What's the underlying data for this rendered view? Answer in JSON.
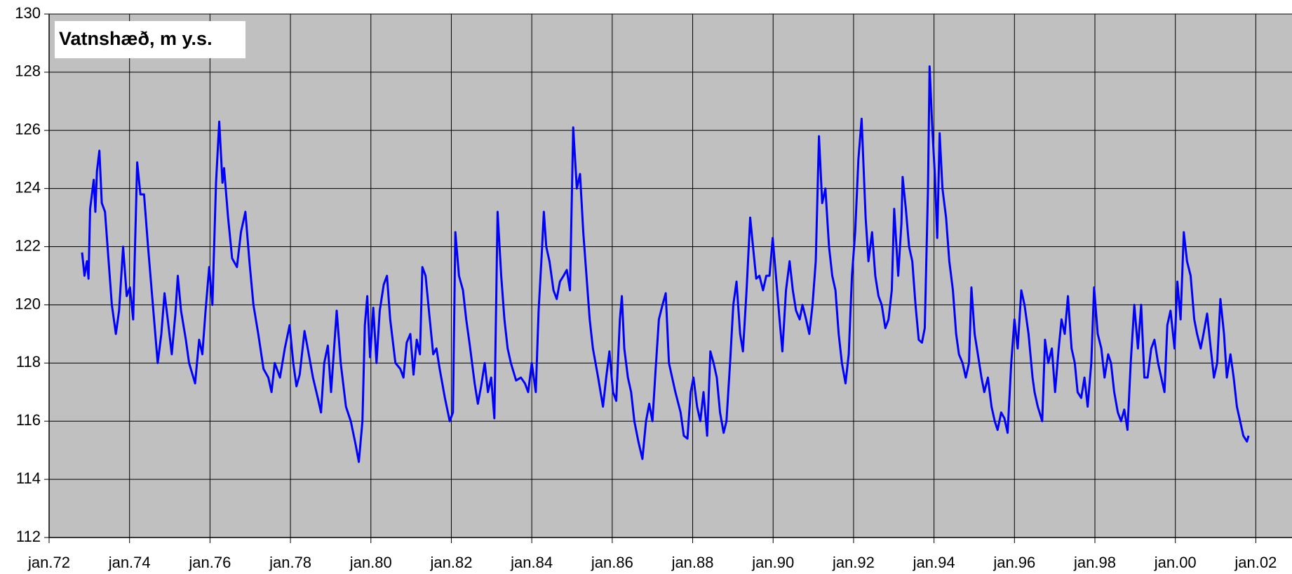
{
  "chart_data": {
    "type": "line",
    "title": "Vatnshæð, m y.s.",
    "color": "#0000ff",
    "background": "#c0c0c0",
    "grid": true,
    "xlim": [
      1972,
      2002.9
    ],
    "ylim": [
      112,
      130
    ],
    "yticks": [
      112,
      114,
      116,
      118,
      120,
      122,
      124,
      126,
      128,
      130
    ],
    "xticks": [
      {
        "value": 1972,
        "label": "jan.72"
      },
      {
        "value": 1974,
        "label": "jan.74"
      },
      {
        "value": 1976,
        "label": "jan.76"
      },
      {
        "value": 1978,
        "label": "jan.78"
      },
      {
        "value": 1980,
        "label": "jan.80"
      },
      {
        "value": 1982,
        "label": "jan.82"
      },
      {
        "value": 1984,
        "label": "jan.84"
      },
      {
        "value": 1986,
        "label": "jan.86"
      },
      {
        "value": 1988,
        "label": "jan.88"
      },
      {
        "value": 1990,
        "label": "jan.90"
      },
      {
        "value": 1992,
        "label": "jan.92"
      },
      {
        "value": 1994,
        "label": "jan.94"
      },
      {
        "value": 1996,
        "label": "jan.96"
      },
      {
        "value": 1998,
        "label": "jan.98"
      },
      {
        "value": 2000,
        "label": "jan.00"
      },
      {
        "value": 2002,
        "label": "jan.02"
      }
    ],
    "x": [
      1972.82,
      1972.88,
      1972.94,
      1972.98,
      1973.02,
      1973.11,
      1973.15,
      1973.19,
      1973.25,
      1973.31,
      1973.39,
      1973.48,
      1973.56,
      1973.66,
      1973.74,
      1973.84,
      1973.93,
      1974.01,
      1974.09,
      1974.19,
      1974.27,
      1974.36,
      1974.46,
      1974.58,
      1974.7,
      1974.79,
      1974.87,
      1974.95,
      1975.05,
      1975.14,
      1975.2,
      1975.28,
      1975.4,
      1975.48,
      1975.63,
      1975.73,
      1975.81,
      1975.89,
      1975.98,
      1976.06,
      1976.15,
      1976.23,
      1976.31,
      1976.35,
      1976.45,
      1976.55,
      1976.67,
      1976.77,
      1976.88,
      1976.98,
      1977.08,
      1977.2,
      1977.33,
      1977.45,
      1977.53,
      1977.61,
      1977.74,
      1977.86,
      1977.98,
      1978.07,
      1978.15,
      1978.23,
      1978.35,
      1978.43,
      1978.56,
      1978.68,
      1978.76,
      1978.84,
      1978.93,
      1979.01,
      1979.09,
      1979.15,
      1979.25,
      1979.38,
      1979.5,
      1979.62,
      1979.7,
      1979.79,
      1979.85,
      1979.91,
      1979.98,
      1980.06,
      1980.14,
      1980.22,
      1980.32,
      1980.4,
      1980.48,
      1980.61,
      1980.73,
      1980.81,
      1980.89,
      1980.98,
      1981.06,
      1981.14,
      1981.22,
      1981.28,
      1981.36,
      1981.45,
      1981.55,
      1981.63,
      1981.71,
      1981.84,
      1981.96,
      1982.04,
      1982.1,
      1982.19,
      1982.29,
      1982.37,
      1982.46,
      1982.58,
      1982.66,
      1982.74,
      1982.83,
      1982.91,
      1982.99,
      1983.07,
      1983.15,
      1983.24,
      1983.32,
      1983.4,
      1983.48,
      1983.61,
      1983.73,
      1983.83,
      1983.91,
      1984.0,
      1984.1,
      1984.17,
      1984.25,
      1984.3,
      1984.36,
      1984.44,
      1984.54,
      1984.62,
      1984.7,
      1984.79,
      1984.87,
      1984.95,
      1985.03,
      1985.12,
      1985.2,
      1985.28,
      1985.36,
      1985.44,
      1985.52,
      1985.65,
      1985.77,
      1985.85,
      1985.93,
      1986.02,
      1986.1,
      1986.19,
      1986.24,
      1986.3,
      1986.39,
      1986.47,
      1986.55,
      1986.65,
      1986.75,
      1986.84,
      1986.92,
      1987.0,
      1987.08,
      1987.16,
      1987.25,
      1987.33,
      1987.41,
      1987.49,
      1987.57,
      1987.7,
      1987.78,
      1987.87,
      1987.95,
      1988.02,
      1988.11,
      1988.19,
      1988.27,
      1988.36,
      1988.44,
      1988.52,
      1988.6,
      1988.68,
      1988.77,
      1988.84,
      1988.93,
      1989.01,
      1989.09,
      1989.18,
      1989.25,
      1989.34,
      1989.43,
      1989.5,
      1989.58,
      1989.66,
      1989.75,
      1989.83,
      1989.91,
      1989.99,
      1990.07,
      1990.16,
      1990.23,
      1990.32,
      1990.41,
      1990.49,
      1990.57,
      1990.66,
      1990.73,
      1990.82,
      1990.9,
      1990.98,
      1991.06,
      1991.14,
      1991.22,
      1991.3,
      1991.39,
      1991.47,
      1991.55,
      1991.63,
      1991.71,
      1991.8,
      1991.88,
      1991.96,
      1992.04,
      1992.12,
      1992.2,
      1992.3,
      1992.37,
      1992.46,
      1992.54,
      1992.62,
      1992.7,
      1992.79,
      1992.87,
      1992.95,
      1993.01,
      1993.11,
      1993.19,
      1993.22,
      1993.3,
      1993.38,
      1993.46,
      1993.54,
      1993.62,
      1993.7,
      1993.77,
      1993.85,
      1993.89,
      1993.96,
      1994.02,
      1994.08,
      1994.14,
      1994.21,
      1994.3,
      1994.38,
      1994.47,
      1994.55,
      1994.62,
      1994.71,
      1994.79,
      1994.87,
      1994.93,
      1995.01,
      1995.09,
      1995.18,
      1995.25,
      1995.34,
      1995.43,
      1995.51,
      1995.58,
      1995.67,
      1995.75,
      1995.83,
      1995.92,
      1996.0,
      1996.08,
      1996.17,
      1996.25,
      1996.35,
      1996.45,
      1996.5,
      1996.58,
      1996.69,
      1996.76,
      1996.84,
      1996.93,
      1997.01,
      1997.1,
      1997.17,
      1997.25,
      1997.33,
      1997.42,
      1997.5,
      1997.57,
      1997.66,
      1997.74,
      1997.82,
      1997.91,
      1997.98,
      1998.07,
      1998.16,
      1998.24,
      1998.33,
      1998.4,
      1998.48,
      1998.57,
      1998.65,
      1998.73,
      1998.81,
      1998.89,
      1998.98,
      1999.07,
      1999.15,
      1999.23,
      1999.31,
      1999.4,
      1999.48,
      1999.57,
      1999.65,
      1999.73,
      1999.8,
      1999.88,
      1999.98,
      2000.05,
      2000.13,
      2000.21,
      2000.29,
      2000.38,
      2000.47,
      2000.54,
      2000.63,
      2000.7,
      2000.79,
      2000.88,
      2000.96,
      2001.04,
      2001.12,
      2001.21,
      2001.28,
      2001.37,
      2001.45,
      2001.53,
      2001.61,
      2001.69,
      2001.78,
      2001.82
    ],
    "values": [
      121.8,
      121.0,
      121.5,
      120.9,
      123.3,
      124.3,
      123.2,
      124.6,
      125.3,
      123.5,
      123.2,
      121.5,
      120.0,
      119.0,
      119.8,
      122.0,
      120.3,
      120.6,
      119.5,
      124.9,
      123.8,
      123.8,
      122.0,
      120.0,
      118.0,
      119.0,
      120.4,
      119.5,
      118.3,
      119.7,
      121.0,
      119.8,
      118.8,
      118.0,
      117.3,
      118.8,
      118.3,
      119.8,
      121.3,
      120.0,
      124.2,
      126.3,
      124.2,
      124.7,
      123.0,
      121.6,
      121.3,
      122.5,
      123.2,
      121.5,
      120.0,
      119.0,
      117.8,
      117.5,
      117.0,
      118.0,
      117.5,
      118.5,
      119.3,
      118.0,
      117.2,
      117.6,
      119.1,
      118.5,
      117.5,
      116.8,
      116.3,
      118.0,
      118.6,
      117.0,
      118.6,
      119.8,
      118.0,
      116.5,
      116.0,
      115.2,
      114.6,
      116.0,
      119.3,
      120.3,
      118.2,
      119.9,
      118.0,
      119.8,
      120.7,
      121.0,
      119.5,
      118.0,
      117.8,
      117.5,
      118.7,
      119.0,
      117.6,
      118.8,
      118.3,
      121.3,
      121.0,
      119.7,
      118.3,
      118.5,
      117.8,
      116.8,
      116.0,
      116.3,
      122.5,
      121.0,
      120.5,
      119.5,
      118.6,
      117.3,
      116.6,
      117.2,
      118.0,
      117.0,
      117.5,
      116.1,
      123.2,
      121.0,
      119.5,
      118.5,
      118.0,
      117.4,
      117.5,
      117.3,
      117.0,
      118.0,
      117.0,
      119.8,
      121.8,
      123.2,
      122.0,
      121.5,
      120.5,
      120.2,
      120.8,
      121.0,
      121.2,
      120.5,
      126.1,
      124.0,
      124.5,
      122.5,
      121.0,
      119.5,
      118.5,
      117.5,
      116.5,
      117.5,
      118.4,
      117.0,
      116.7,
      119.5,
      120.3,
      118.5,
      117.5,
      117.0,
      116.0,
      115.3,
      114.7,
      116.0,
      116.6,
      116.0,
      117.8,
      119.5,
      120.0,
      120.4,
      118.0,
      117.5,
      117.0,
      116.3,
      115.5,
      115.4,
      117.0,
      117.5,
      116.5,
      116.0,
      117.0,
      115.5,
      118.4,
      118.0,
      117.5,
      116.3,
      115.6,
      116.0,
      118.0,
      120.0,
      120.8,
      119.0,
      118.4,
      120.5,
      123.0,
      122.0,
      120.9,
      121.0,
      120.5,
      121.0,
      121.0,
      122.3,
      121.0,
      119.5,
      118.4,
      120.5,
      121.5,
      120.5,
      119.8,
      119.5,
      120.0,
      119.5,
      119.0,
      120.0,
      121.5,
      125.8,
      123.5,
      124.0,
      122.0,
      121.0,
      120.5,
      119.0,
      118.0,
      117.3,
      118.3,
      121.0,
      122.5,
      125.0,
      126.4,
      123.0,
      121.5,
      122.5,
      121.0,
      120.3,
      120.0,
      119.2,
      119.5,
      120.5,
      123.3,
      121.0,
      122.8,
      124.4,
      123.3,
      122.0,
      121.5,
      120.0,
      118.8,
      118.7,
      119.2,
      124.0,
      128.2,
      126.0,
      124.5,
      122.3,
      125.9,
      124.0,
      123.0,
      121.5,
      120.5,
      119.0,
      118.3,
      118.0,
      117.5,
      118.0,
      120.6,
      119.0,
      118.3,
      117.5,
      117.0,
      117.5,
      116.5,
      116.0,
      115.7,
      116.3,
      116.1,
      115.6,
      118.0,
      119.5,
      118.5,
      120.5,
      120.0,
      119.0,
      117.5,
      117.0,
      116.5,
      116.0,
      118.8,
      118.0,
      118.5,
      117.0,
      118.5,
      119.5,
      119.0,
      120.3,
      118.5,
      118.0,
      117.0,
      116.8,
      117.5,
      116.5,
      118.0,
      120.6,
      119.0,
      118.5,
      117.5,
      118.3,
      118.0,
      117.0,
      116.3,
      116.0,
      116.4,
      115.7,
      118.0,
      120.0,
      118.5,
      120.0,
      117.5,
      117.5,
      118.5,
      118.8,
      118.0,
      117.5,
      117.0,
      119.3,
      119.8,
      118.5,
      120.8,
      119.5,
      122.5,
      121.5,
      121.0,
      119.5,
      119.0,
      118.5,
      119.0,
      119.7,
      118.5,
      117.5,
      118.0,
      120.2,
      119.0,
      117.5,
      118.3,
      117.5,
      116.5,
      116.0,
      115.5,
      115.3,
      115.5
    ]
  }
}
